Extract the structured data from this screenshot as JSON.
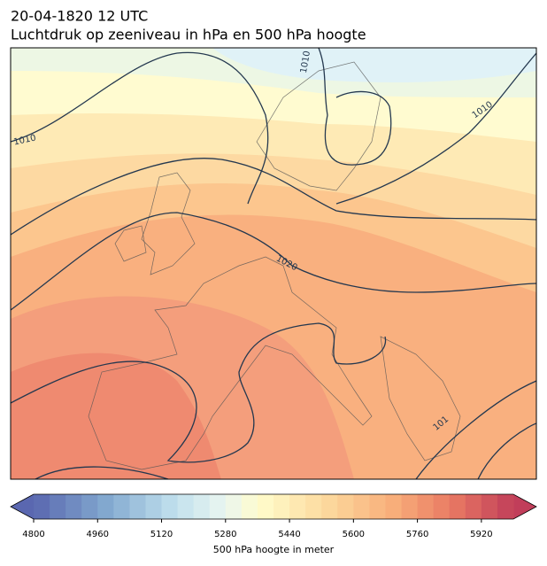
{
  "header": {
    "title": "20-04-1820 12 UTC",
    "subtitle": "Luchtdruk op zeeniveau in hPa en 500 hPa hoogte"
  },
  "map": {
    "contour_labels": [
      "1010",
      "1010",
      "1010",
      "1020",
      "101"
    ]
  },
  "colorbar": {
    "label": "500 hPa hoogte in meter",
    "lim": [
      4800,
      6000
    ],
    "ticks": [
      4800,
      4960,
      5120,
      5280,
      5440,
      5600,
      5760,
      5920
    ]
  }
}
